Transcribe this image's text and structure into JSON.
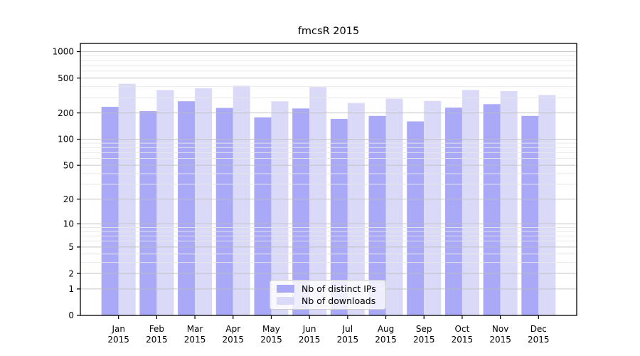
{
  "chart_data": {
    "type": "bar",
    "title": "fmcsR 2015",
    "categories": [
      "Jan 2015",
      "Feb 2015",
      "Mar 2015",
      "Apr 2015",
      "May 2015",
      "Jun 2015",
      "Jul 2015",
      "Aug 2015",
      "Sep 2015",
      "Oct 2015",
      "Nov 2015",
      "Dec 2015"
    ],
    "series": [
      {
        "name": "Nb of distinct IPs",
        "color": "#a9a9f7",
        "values": [
          235,
          210,
          272,
          228,
          178,
          225,
          171,
          185,
          160,
          230,
          252,
          185
        ]
      },
      {
        "name": "Nb of downloads",
        "color": "#dadaf8",
        "values": [
          430,
          365,
          383,
          409,
          272,
          395,
          260,
          291,
          274,
          366,
          355,
          320
        ]
      }
    ],
    "xlabel": "",
    "ylabel": "",
    "y_axis": {
      "scale": "log1p",
      "ticks": [
        0,
        1,
        2,
        5,
        10,
        20,
        50,
        100,
        200,
        500,
        1000
      ],
      "minor_ticks": [
        3,
        4,
        6,
        7,
        8,
        9,
        30,
        40,
        60,
        70,
        80,
        90,
        300,
        400,
        600,
        700,
        800,
        900
      ],
      "ylim": [
        0,
        1240
      ]
    },
    "grid": true,
    "legend_position": "lower center"
  },
  "colors": {
    "background": "#ffffff",
    "axis": "#000000",
    "grid_major": "#bdbdbd",
    "grid_minor": "#e7e7e7",
    "tick_label": "#000000"
  }
}
